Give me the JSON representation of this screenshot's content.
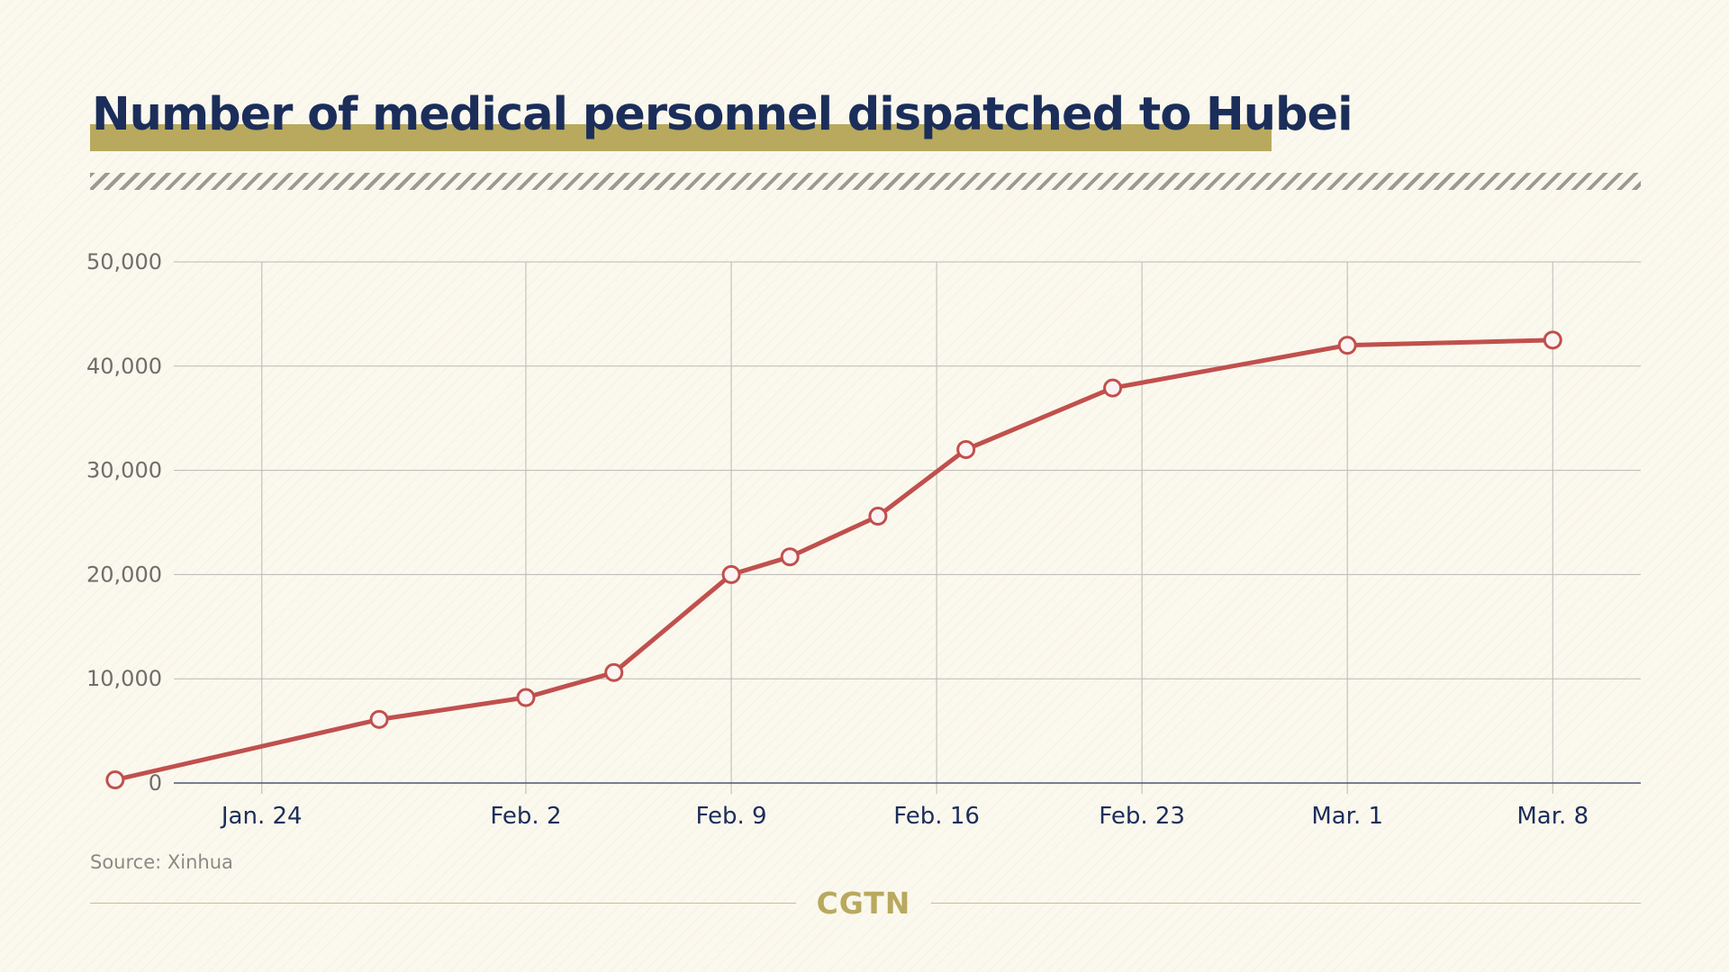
{
  "title": "Number of medical personnel dispatched to Hubei",
  "source": "Source: Xinhua",
  "logo": "CGTN",
  "colors": {
    "background": "#fbf8ee",
    "title_text": "#1b2e5a",
    "title_bar": "#b8a95e",
    "line": "#c0504d",
    "grid": "#b9b9b4",
    "logo": "#b8a95e"
  },
  "chart_data": {
    "type": "line",
    "title": "Number of medical personnel dispatched to Hubei",
    "xlabel": "",
    "ylabel": "",
    "ylim": [
      0,
      50000
    ],
    "xlim": [
      "2020-01-21",
      "2020-03-11"
    ],
    "y_ticks": [
      0,
      10000,
      20000,
      30000,
      40000,
      50000
    ],
    "y_tick_labels": [
      "0",
      "10,000",
      "20,000",
      "30,000",
      "40,000",
      "50,000"
    ],
    "x_ticks": [
      "2020-01-24",
      "2020-02-02",
      "2020-02-09",
      "2020-02-16",
      "2020-02-23",
      "2020-03-01",
      "2020-03-08"
    ],
    "x_tick_labels": [
      "Jan. 24",
      "Feb. 2",
      "Feb. 9",
      "Feb. 16",
      "Feb. 23",
      "Mar. 1",
      "Mar. 8"
    ],
    "grid": true,
    "series": [
      {
        "x": [
          "2020-01-19",
          "2020-01-28",
          "2020-02-02",
          "2020-02-05",
          "2020-02-09",
          "2020-02-11",
          "2020-02-14",
          "2020-02-17",
          "2020-02-22",
          "2020-03-01",
          "2020-03-08"
        ],
        "y": [
          300,
          6100,
          8200,
          10600,
          20000,
          21700,
          25600,
          32000,
          37900,
          42000,
          42500
        ]
      }
    ]
  }
}
